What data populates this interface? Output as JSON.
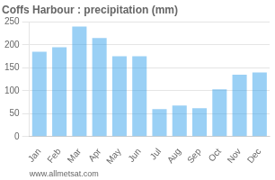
{
  "chart_data": {
    "type": "bar",
    "title": "Coffs Harbour : precipitation (mm)",
    "categories": [
      "Jan",
      "Feb",
      "Mar",
      "Apr",
      "May",
      "Jun",
      "Jul",
      "Aug",
      "Sep",
      "Oct",
      "Nov",
      "Dec"
    ],
    "values": [
      185,
      195,
      240,
      215,
      175,
      175,
      60,
      68,
      62,
      103,
      135,
      140
    ],
    "ylim": [
      0,
      250
    ],
    "yticks": [
      0,
      50,
      100,
      150,
      200,
      250
    ],
    "grid": true,
    "annotations": [
      "www.allmetsat.com"
    ]
  }
}
